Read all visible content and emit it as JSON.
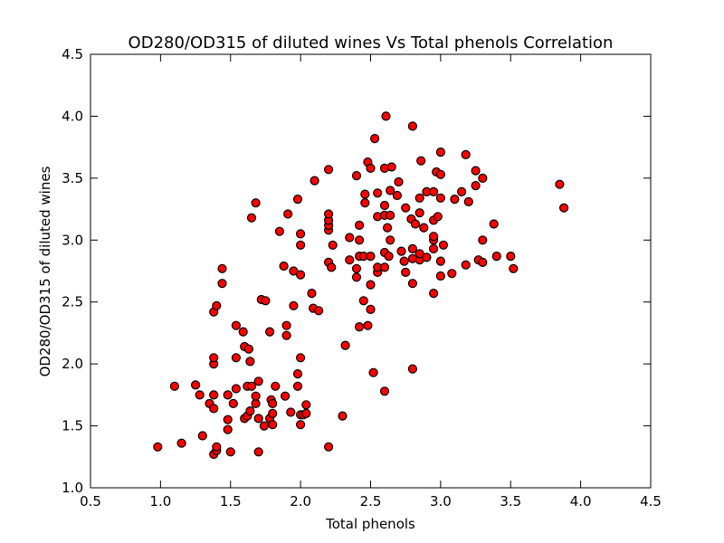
{
  "chart_data": {
    "type": "scatter",
    "title": "OD280/OD315 of diluted wines Vs Total phenols Correlation",
    "xlabel": "Total phenols",
    "ylabel": "OD280/OD315 of diluted wines",
    "xlim": [
      0.5,
      4.5
    ],
    "ylim": [
      1.0,
      4.5
    ],
    "xticks": [
      "0.5",
      "1.0",
      "1.5",
      "2.0",
      "2.5",
      "3.0",
      "3.5",
      "4.0",
      "4.5"
    ],
    "yticks": [
      "1.0",
      "1.5",
      "2.0",
      "2.5",
      "3.0",
      "3.5",
      "4.0",
      "4.5"
    ],
    "grid": false,
    "marker_color": "#ff0000",
    "marker_edge_color": "#000000",
    "points": [
      [
        0.98,
        1.33
      ],
      [
        1.1,
        1.82
      ],
      [
        1.15,
        1.36
      ],
      [
        1.25,
        1.83
      ],
      [
        1.28,
        1.75
      ],
      [
        1.3,
        1.42
      ],
      [
        1.35,
        1.68
      ],
      [
        1.38,
        1.27
      ],
      [
        1.38,
        1.64
      ],
      [
        1.4,
        1.3
      ],
      [
        1.4,
        1.33
      ],
      [
        1.38,
        1.75
      ],
      [
        1.38,
        2.0
      ],
      [
        1.38,
        2.05
      ],
      [
        1.38,
        2.42
      ],
      [
        1.4,
        2.47
      ],
      [
        1.44,
        2.65
      ],
      [
        1.44,
        2.77
      ],
      [
        1.48,
        1.47
      ],
      [
        1.48,
        1.55
      ],
      [
        1.48,
        1.75
      ],
      [
        1.5,
        1.29
      ],
      [
        1.52,
        1.68
      ],
      [
        1.54,
        1.8
      ],
      [
        1.54,
        2.05
      ],
      [
        1.54,
        2.31
      ],
      [
        1.59,
        2.26
      ],
      [
        1.6,
        1.56
      ],
      [
        1.6,
        2.14
      ],
      [
        1.62,
        1.58
      ],
      [
        1.62,
        1.82
      ],
      [
        1.63,
        2.12
      ],
      [
        1.64,
        1.62
      ],
      [
        1.64,
        2.02
      ],
      [
        1.65,
        1.82
      ],
      [
        1.65,
        3.18
      ],
      [
        1.68,
        1.68
      ],
      [
        1.68,
        1.74
      ],
      [
        1.68,
        3.3
      ],
      [
        1.7,
        1.29
      ],
      [
        1.7,
        1.56
      ],
      [
        1.7,
        1.86
      ],
      [
        1.72,
        2.52
      ],
      [
        1.74,
        1.5
      ],
      [
        1.75,
        2.51
      ],
      [
        1.78,
        1.56
      ],
      [
        1.78,
        2.26
      ],
      [
        1.79,
        1.71
      ],
      [
        1.8,
        1.51
      ],
      [
        1.8,
        1.6
      ],
      [
        1.8,
        1.68
      ],
      [
        1.82,
        1.82
      ],
      [
        1.85,
        3.07
      ],
      [
        1.88,
        2.79
      ],
      [
        1.89,
        1.74
      ],
      [
        1.9,
        2.23
      ],
      [
        1.9,
        2.31
      ],
      [
        1.91,
        3.21
      ],
      [
        1.93,
        1.61
      ],
      [
        1.95,
        2.47
      ],
      [
        1.95,
        2.75
      ],
      [
        1.98,
        1.92
      ],
      [
        1.98,
        1.82
      ],
      [
        1.98,
        3.33
      ],
      [
        2.0,
        1.51
      ],
      [
        2.0,
        1.59
      ],
      [
        2.0,
        2.05
      ],
      [
        2.0,
        2.72
      ],
      [
        2.0,
        2.96
      ],
      [
        2.0,
        3.05
      ],
      [
        2.02,
        1.59
      ],
      [
        2.04,
        1.67
      ],
      [
        2.04,
        1.6
      ],
      [
        2.08,
        2.57
      ],
      [
        2.09,
        2.45
      ],
      [
        2.1,
        3.48
      ],
      [
        2.13,
        2.43
      ],
      [
        2.2,
        1.33
      ],
      [
        2.2,
        2.82
      ],
      [
        2.2,
        3.08
      ],
      [
        2.2,
        3.12
      ],
      [
        2.2,
        3.16
      ],
      [
        2.2,
        3.21
      ],
      [
        2.2,
        3.57
      ],
      [
        2.22,
        2.78
      ],
      [
        2.23,
        2.96
      ],
      [
        2.3,
        1.58
      ],
      [
        2.32,
        2.15
      ],
      [
        2.35,
        2.84
      ],
      [
        2.35,
        3.02
      ],
      [
        2.4,
        2.7
      ],
      [
        2.4,
        2.77
      ],
      [
        2.4,
        3.52
      ],
      [
        2.42,
        2.3
      ],
      [
        2.42,
        2.87
      ],
      [
        2.42,
        3.0
      ],
      [
        2.42,
        3.12
      ],
      [
        2.45,
        2.51
      ],
      [
        2.45,
        2.87
      ],
      [
        2.46,
        3.3
      ],
      [
        2.46,
        3.37
      ],
      [
        2.48,
        2.31
      ],
      [
        2.48,
        3.63
      ],
      [
        2.5,
        2.44
      ],
      [
        2.5,
        2.64
      ],
      [
        2.5,
        2.87
      ],
      [
        2.5,
        3.58
      ],
      [
        2.52,
        1.93
      ],
      [
        2.53,
        3.82
      ],
      [
        2.55,
        2.74
      ],
      [
        2.55,
        2.78
      ],
      [
        2.55,
        3.19
      ],
      [
        2.55,
        3.38
      ],
      [
        2.6,
        1.78
      ],
      [
        2.6,
        2.78
      ],
      [
        2.6,
        2.9
      ],
      [
        2.6,
        3.2
      ],
      [
        2.6,
        3.28
      ],
      [
        2.6,
        3.58
      ],
      [
        2.61,
        4.0
      ],
      [
        2.62,
        3.1
      ],
      [
        2.63,
        2.87
      ],
      [
        2.64,
        3.0
      ],
      [
        2.64,
        3.2
      ],
      [
        2.64,
        3.4
      ],
      [
        2.65,
        3.59
      ],
      [
        2.69,
        3.36
      ],
      [
        2.7,
        3.47
      ],
      [
        2.72,
        2.91
      ],
      [
        2.74,
        2.83
      ],
      [
        2.75,
        2.74
      ],
      [
        2.75,
        3.26
      ],
      [
        2.79,
        3.17
      ],
      [
        2.8,
        1.96
      ],
      [
        2.8,
        2.65
      ],
      [
        2.8,
        2.85
      ],
      [
        2.8,
        2.93
      ],
      [
        2.8,
        3.92
      ],
      [
        2.82,
        3.13
      ],
      [
        2.85,
        2.84
      ],
      [
        2.85,
        2.89
      ],
      [
        2.85,
        3.22
      ],
      [
        2.85,
        3.34
      ],
      [
        2.86,
        3.64
      ],
      [
        2.88,
        3.1
      ],
      [
        2.9,
        2.86
      ],
      [
        2.9,
        3.39
      ],
      [
        2.95,
        2.57
      ],
      [
        2.95,
        2.93
      ],
      [
        2.95,
        3.0
      ],
      [
        2.95,
        3.03
      ],
      [
        2.95,
        3.16
      ],
      [
        2.95,
        3.39
      ],
      [
        2.97,
        3.55
      ],
      [
        2.98,
        3.19
      ],
      [
        3.0,
        2.71
      ],
      [
        3.0,
        2.83
      ],
      [
        3.0,
        3.34
      ],
      [
        3.0,
        3.53
      ],
      [
        3.0,
        3.71
      ],
      [
        3.02,
        2.96
      ],
      [
        3.08,
        2.73
      ],
      [
        3.1,
        3.33
      ],
      [
        3.15,
        3.39
      ],
      [
        3.18,
        2.8
      ],
      [
        3.18,
        3.69
      ],
      [
        3.2,
        3.31
      ],
      [
        3.25,
        3.44
      ],
      [
        3.25,
        3.56
      ],
      [
        3.27,
        2.84
      ],
      [
        3.3,
        2.82
      ],
      [
        3.3,
        3.0
      ],
      [
        3.3,
        3.5
      ],
      [
        3.38,
        3.13
      ],
      [
        3.4,
        2.87
      ],
      [
        3.5,
        2.87
      ],
      [
        3.52,
        2.77
      ],
      [
        3.85,
        3.45
      ],
      [
        3.88,
        3.26
      ]
    ]
  }
}
